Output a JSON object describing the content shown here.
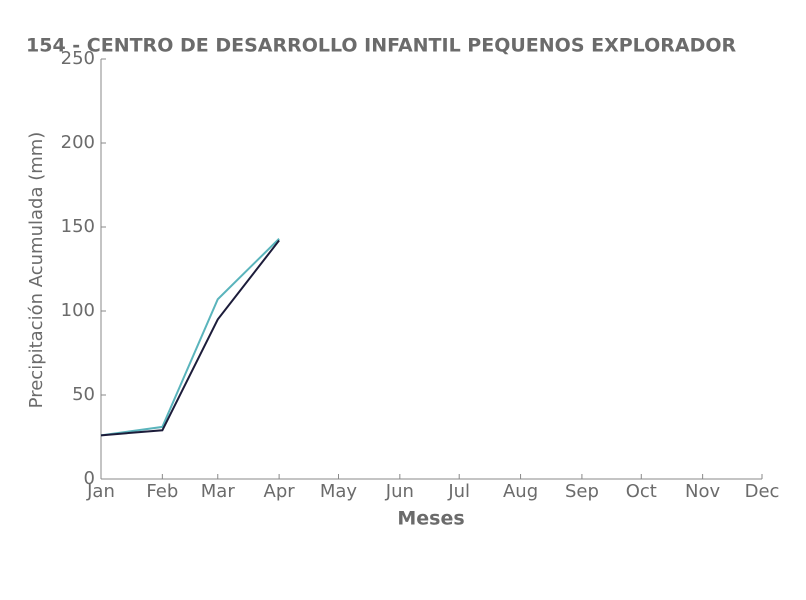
{
  "chart_data": {
    "type": "line",
    "title": "154 - CENTRO DE DESARROLLO INFANTIL PEQUENOS EXPLORADOR",
    "x_label": "Meses",
    "y_label": "Precipitación Acumulada (mm)",
    "categories": [
      "Jan",
      "Feb",
      "Mar",
      "Apr",
      "May",
      "Jun",
      "Jul",
      "Aug",
      "Sep",
      "Oct",
      "Nov",
      "Dec"
    ],
    "series": [
      {
        "color": "#5ab4bc",
        "values": [
          26,
          31,
          107,
          143,
          null,
          null,
          null,
          null,
          null,
          null,
          null,
          null
        ]
      },
      {
        "color": "#1c1c3a",
        "values": [
          26,
          29,
          95,
          142,
          null,
          null,
          null,
          null,
          null,
          null,
          null,
          null
        ]
      }
    ],
    "ylim": [
      0,
      250
    ],
    "yticks": [
      0,
      50,
      100,
      150,
      200,
      250
    ],
    "grid": false
  }
}
